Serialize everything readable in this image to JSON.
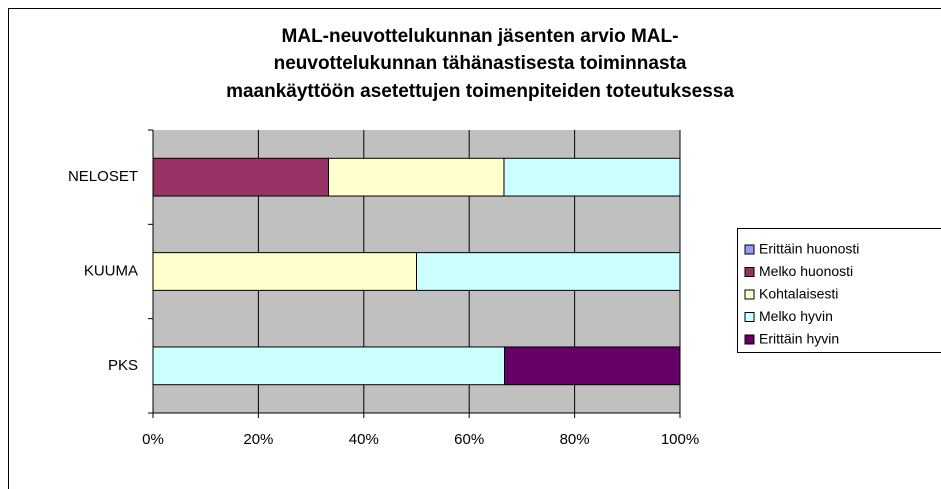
{
  "chart_data": {
    "type": "stacked_barh",
    "title": [
      "MAL-neuvottelukunnan jäsenten arvio MAL-",
      "neuvottelukunnan tähänastisesta toiminnasta",
      "maankäyttöön asetettujen toimenpiteiden toteutuksessa"
    ],
    "categories": [
      "PKS",
      "KUUMA",
      "NELOSET"
    ],
    "series": [
      {
        "name": "Erittäin huonosti",
        "color": "#9999ff",
        "values": [
          0,
          0,
          0
        ]
      },
      {
        "name": "Melko huonosti",
        "color": "#993366",
        "values": [
          0,
          0,
          33.3
        ]
      },
      {
        "name": "Kohtalaisesti",
        "color": "#ffffcc",
        "values": [
          0,
          50,
          33.3
        ]
      },
      {
        "name": "Melko hyvin",
        "color": "#ccffff",
        "values": [
          66.7,
          50,
          33.4
        ]
      },
      {
        "name": "Erittäin hyvin",
        "color": "#660066",
        "values": [
          33.3,
          0,
          0
        ]
      }
    ],
    "xlim": [
      0,
      100
    ],
    "xticks": [
      {
        "value": 0,
        "label": "0%"
      },
      {
        "value": 20,
        "label": "20%"
      },
      {
        "value": 40,
        "label": "40%"
      },
      {
        "value": 60,
        "label": "60%"
      },
      {
        "value": 80,
        "label": "80%"
      },
      {
        "value": 100,
        "label": "100%"
      }
    ],
    "grid": true,
    "plot_background": "#c0c0c0",
    "legend": "right"
  }
}
